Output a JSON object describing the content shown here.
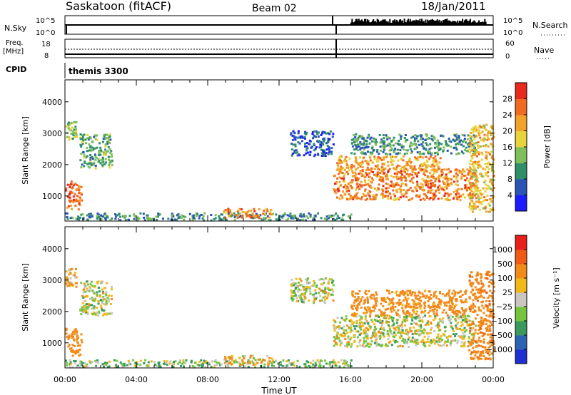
{
  "header": {
    "station": "Saskatoon (fitACF)",
    "beam": "Beam 02",
    "date": "18/Jan/2011"
  },
  "top_panels": {
    "nsky_label": "N.Sky",
    "nsky_ticks": [
      "10^5",
      "10^0"
    ],
    "nsearch_label": "N.Search",
    "nsearch_ticks": [
      "10^5",
      "10^0"
    ],
    "freq_label": "Freq.",
    "freq_unit": "[MHz]",
    "freq_ticks": [
      "18",
      "8"
    ],
    "nave_label": "Nave",
    "nave_ticks": [
      "60",
      "0"
    ],
    "cpid_label": "CPID",
    "cpid_value": "themis 3300"
  },
  "chart_data": [
    {
      "type": "heatmap",
      "quantity": "power",
      "xlabel": "",
      "ylabel": "Slant Range [km]",
      "xlim": [
        "00:00",
        "24:00"
      ],
      "ylim": [
        200,
        4700
      ],
      "x_ticks": [
        "00:00",
        "04:00",
        "08:00",
        "12:00",
        "16:00",
        "20:00",
        "00:00"
      ],
      "y_ticks": [
        1000,
        2000,
        3000,
        4000
      ],
      "colorbar": {
        "label": "Power [dB]",
        "range": [
          0,
          32
        ],
        "ticks": [
          4,
          8,
          12,
          16,
          20,
          24,
          28
        ],
        "colors": [
          "#1c1cff",
          "#2a55b5",
          "#2f8f6b",
          "#7fbf5a",
          "#e6d43a",
          "#f2a12a",
          "#f06a1f",
          "#e8291c"
        ]
      },
      "echo_regions": [
        {
          "t_start": 0.0,
          "t_end": 0.9,
          "r_low": 600,
          "r_high": 1500,
          "power_db": 26
        },
        {
          "t_start": 0.0,
          "t_end": 0.6,
          "r_low": 2800,
          "r_high": 3400,
          "power_db": 14
        },
        {
          "t_start": 0.8,
          "t_end": 2.6,
          "r_low": 1900,
          "r_high": 3000,
          "power_db": 12
        },
        {
          "t_start": 0.0,
          "t_end": 16.0,
          "r_low": 250,
          "r_high": 480,
          "power_db": 10
        },
        {
          "t_start": 8.8,
          "t_end": 11.6,
          "r_low": 330,
          "r_high": 620,
          "power_db": 24
        },
        {
          "t_start": 12.6,
          "t_end": 15.0,
          "r_low": 2300,
          "r_high": 3100,
          "power_db": 6
        },
        {
          "t_start": 15.0,
          "t_end": 23.0,
          "r_low": 900,
          "r_high": 1900,
          "power_db": 24
        },
        {
          "t_start": 15.2,
          "t_end": 21.0,
          "r_low": 1850,
          "r_high": 2300,
          "power_db": 22
        },
        {
          "t_start": 16.0,
          "t_end": 23.0,
          "r_low": 2350,
          "r_high": 3000,
          "power_db": 10
        },
        {
          "t_start": 22.6,
          "t_end": 24.0,
          "r_low": 500,
          "r_high": 3300,
          "power_db": 20
        }
      ]
    },
    {
      "type": "heatmap",
      "quantity": "velocity",
      "xlabel": "Time UT",
      "ylabel": "Slant Range [km]",
      "xlim": [
        "00:00",
        "24:00"
      ],
      "ylim": [
        200,
        4700
      ],
      "x_ticks": [
        "00:00",
        "04:00",
        "08:00",
        "12:00",
        "16:00",
        "20:00",
        "00:00"
      ],
      "y_ticks": [
        1000,
        2000,
        3000,
        4000
      ],
      "colorbar": {
        "label": "Velocity [m s⁻¹]",
        "ticks": [
          "1000",
          "500",
          "100",
          "25",
          "−25",
          "−100",
          "−500",
          "−1000"
        ],
        "colors": [
          "#1f2fd0",
          "#2c63b5",
          "#3a9a5e",
          "#74c43e",
          "#c9c6c0",
          "#f1b81a",
          "#f28a1a",
          "#ef5a14",
          "#e8201a"
        ]
      },
      "echo_regions": [
        {
          "t_start": 0.0,
          "t_end": 0.9,
          "r_low": 600,
          "r_high": 1500,
          "velocity": -300
        },
        {
          "t_start": 0.0,
          "t_end": 0.6,
          "r_low": 2800,
          "r_high": 3400,
          "velocity": -100
        },
        {
          "t_start": 0.8,
          "t_end": 2.6,
          "r_low": 1900,
          "r_high": 3000,
          "velocity": 0
        },
        {
          "t_start": 0.0,
          "t_end": 16.0,
          "r_low": 250,
          "r_high": 480,
          "velocity": 60
        },
        {
          "t_start": 8.8,
          "t_end": 11.6,
          "r_low": 330,
          "r_high": 620,
          "velocity": -60
        },
        {
          "t_start": 12.6,
          "t_end": 15.0,
          "r_low": 2300,
          "r_high": 3100,
          "velocity": 0
        },
        {
          "t_start": 15.0,
          "t_end": 23.0,
          "r_low": 900,
          "r_high": 1900,
          "velocity": 0
        },
        {
          "t_start": 16.0,
          "t_end": 22.5,
          "r_low": 1900,
          "r_high": 2700,
          "velocity": -200
        },
        {
          "t_start": 22.6,
          "t_end": 24.0,
          "r_low": 500,
          "r_high": 3300,
          "velocity": -400
        }
      ]
    }
  ]
}
